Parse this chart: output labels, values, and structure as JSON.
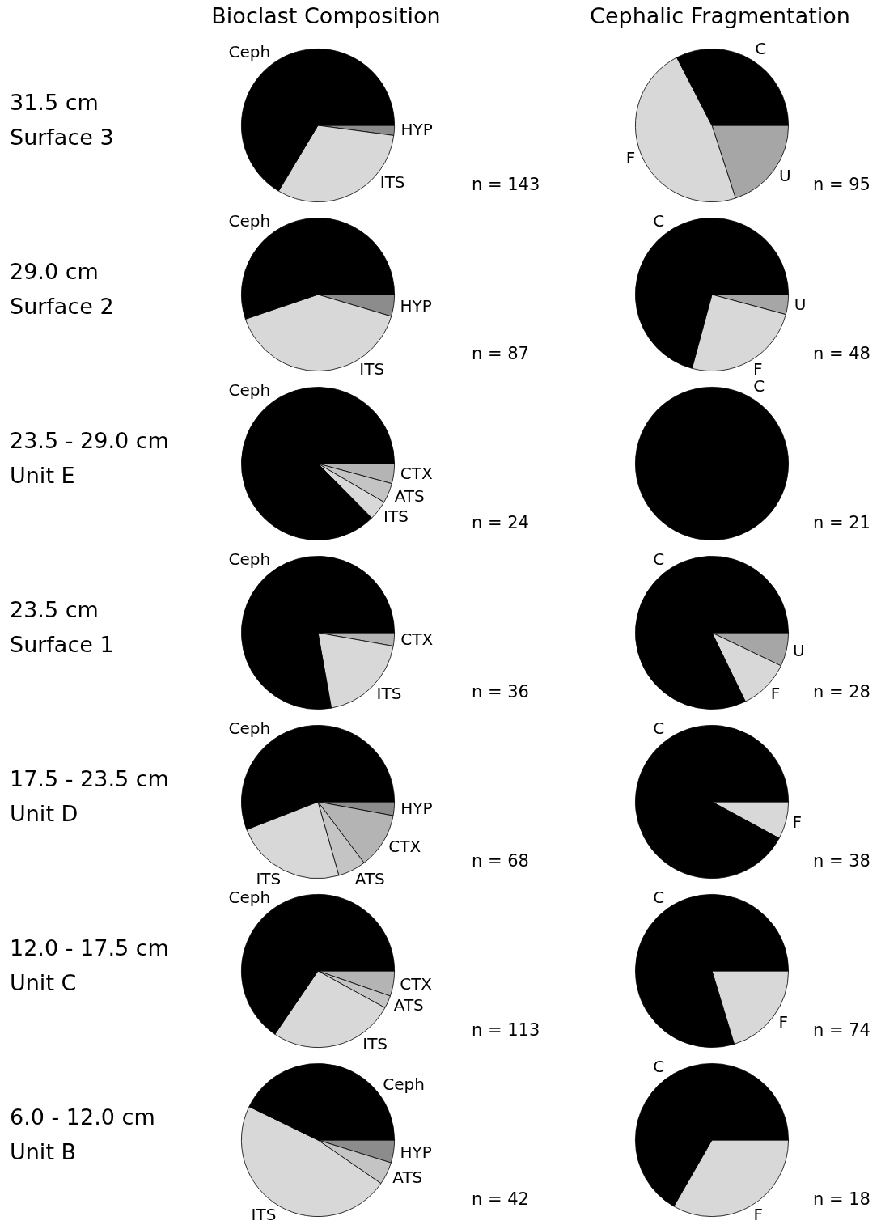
{
  "chart_data": [
    {
      "type": "pie",
      "title": "Bioclast Composition",
      "subtitle": "31.5 cm\nSurface 3",
      "categories": [
        "HYP",
        "ITS",
        "Ceph"
      ],
      "values": [
        2.1,
        31.5,
        66.4
      ],
      "colors": [
        "#8c8c8c",
        "#d8d8d8",
        "#000000"
      ],
      "annotations": [
        "n = 143"
      ]
    },
    {
      "type": "pie",
      "title": "Cephalic Fragmentation",
      "categories": [
        "U",
        "F",
        "C"
      ],
      "values": [
        20.0,
        47.4,
        32.6
      ],
      "colors": [
        "#a6a6a6",
        "#d8d8d8",
        "#000000"
      ],
      "annotations": [
        "n = 95"
      ]
    },
    {
      "type": "pie",
      "subtitle": "29.0 cm\nSurface 2",
      "categories": [
        "HYP",
        "ITS",
        "Ceph"
      ],
      "values": [
        4.6,
        40.2,
        55.2
      ],
      "colors": [
        "#8c8c8c",
        "#d8d8d8",
        "#000000"
      ],
      "annotations": [
        "n = 87"
      ]
    },
    {
      "type": "pie",
      "categories": [
        "U",
        "F",
        "C"
      ],
      "values": [
        4.2,
        25.0,
        70.8
      ],
      "colors": [
        "#a6a6a6",
        "#d8d8d8",
        "#000000"
      ],
      "annotations": [
        "n = 48"
      ]
    },
    {
      "type": "pie",
      "subtitle": "23.5 - 29.0 cm\nUnit E",
      "categories": [
        "CTX",
        "ATS",
        "ITS",
        "Ceph"
      ],
      "values": [
        4.2,
        4.2,
        4.2,
        87.4
      ],
      "colors": [
        "#b4b4b4",
        "#c4c4c4",
        "#d8d8d8",
        "#000000"
      ],
      "annotations": [
        "n = 24"
      ]
    },
    {
      "type": "pie",
      "categories": [
        "C"
      ],
      "values": [
        100
      ],
      "colors": [
        "#000000"
      ],
      "annotations": [
        "n = 21"
      ]
    },
    {
      "type": "pie",
      "subtitle": "23.5 cm\nSurface 1",
      "categories": [
        "CTX",
        "ITS",
        "Ceph"
      ],
      "values": [
        2.8,
        19.4,
        77.8
      ],
      "colors": [
        "#b4b4b4",
        "#d8d8d8",
        "#000000"
      ],
      "annotations": [
        "n = 36"
      ]
    },
    {
      "type": "pie",
      "categories": [
        "U",
        "F",
        "C"
      ],
      "values": [
        7.1,
        10.7,
        82.2
      ],
      "colors": [
        "#a6a6a6",
        "#d8d8d8",
        "#000000"
      ],
      "annotations": [
        "n = 28"
      ]
    },
    {
      "type": "pie",
      "subtitle": "17.5 - 23.5 cm\nUnit D",
      "categories": [
        "HYP",
        "CTX",
        "ATS",
        "ITS",
        "Ceph"
      ],
      "values": [
        2.9,
        11.8,
        5.9,
        23.5,
        55.9
      ],
      "colors": [
        "#8c8c8c",
        "#b4b4b4",
        "#c4c4c4",
        "#d8d8d8",
        "#000000"
      ],
      "annotations": [
        "n = 68"
      ]
    },
    {
      "type": "pie",
      "categories": [
        "F",
        "C"
      ],
      "values": [
        7.9,
        92.1
      ],
      "colors": [
        "#d8d8d8",
        "#000000"
      ],
      "annotations": [
        "n = 38"
      ]
    },
    {
      "type": "pie",
      "subtitle": "12.0 - 17.5 cm\nUnit C",
      "categories": [
        "CTX",
        "ATS",
        "ITS",
        "Ceph"
      ],
      "values": [
        5.3,
        2.7,
        26.5,
        65.5
      ],
      "colors": [
        "#b4b4b4",
        "#c4c4c4",
        "#d8d8d8",
        "#000000"
      ],
      "annotations": [
        "n = 113"
      ]
    },
    {
      "type": "pie",
      "categories": [
        "F",
        "C"
      ],
      "values": [
        20.3,
        79.7
      ],
      "colors": [
        "#d8d8d8",
        "#000000"
      ],
      "annotations": [
        "n = 74"
      ]
    },
    {
      "type": "pie",
      "subtitle": "6.0 - 12.0 cm\nUnit B",
      "categories": [
        "HYP",
        "ATS",
        "ITS",
        "Ceph"
      ],
      "values": [
        4.8,
        4.8,
        47.6,
        42.8
      ],
      "colors": [
        "#8c8c8c",
        "#c4c4c4",
        "#d8d8d8",
        "#000000"
      ],
      "annotations": [
        "n = 42"
      ]
    },
    {
      "type": "pie",
      "categories": [
        "F",
        "C"
      ],
      "values": [
        33.3,
        66.7
      ],
      "colors": [
        "#d8d8d8",
        "#000000"
      ],
      "annotations": [
        "n = 18"
      ]
    }
  ]
}
